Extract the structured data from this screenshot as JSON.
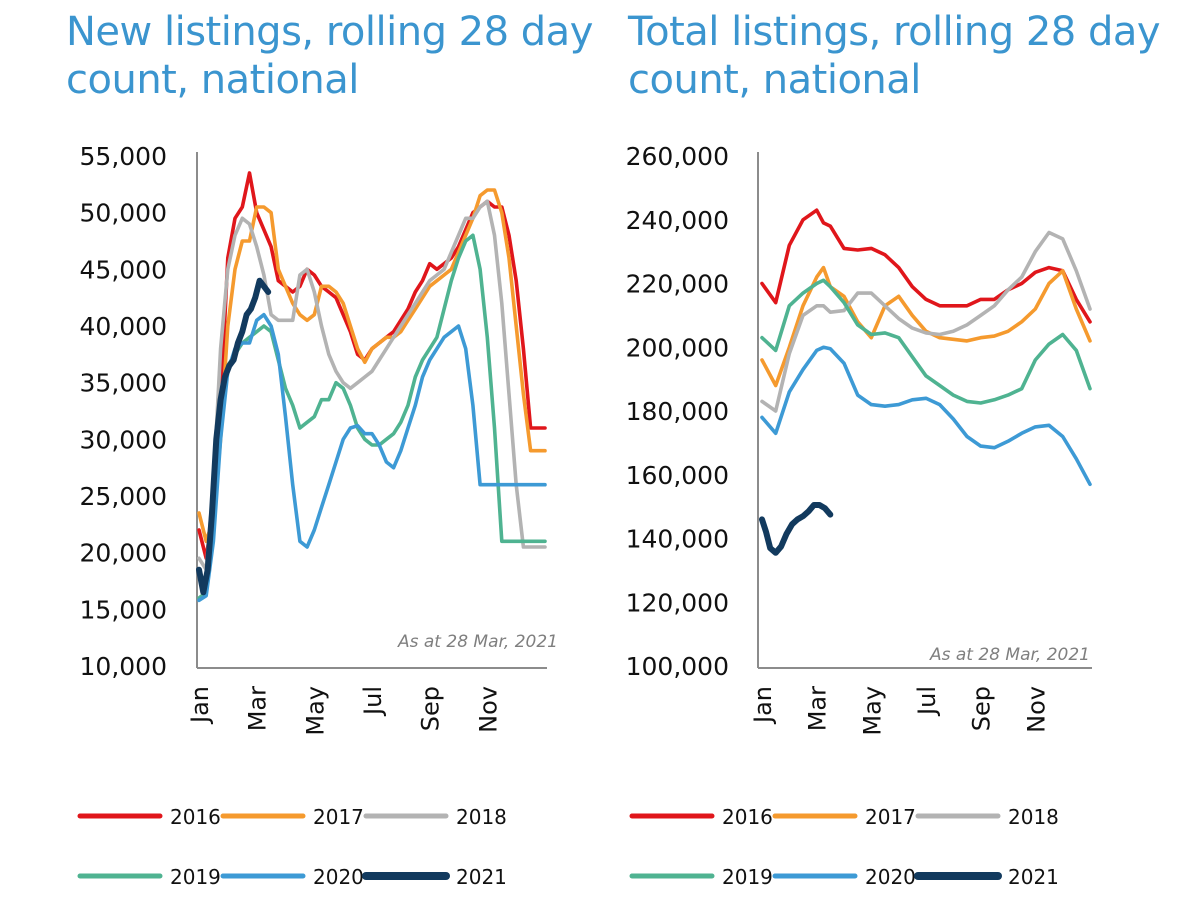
{
  "titles": {
    "left": "New listings, rolling 28 day count, national",
    "right": "Total listings, rolling 28 day count, national"
  },
  "colors": {
    "2016": "#e0161b",
    "2017": "#f59a2e",
    "2018": "#b3b3b3",
    "2019": "#4fb391",
    "2020": "#3d9ad5",
    "2021": "#123a5e"
  },
  "chart_data": [
    {
      "type": "line",
      "title": "New listings, rolling 28 day count, national",
      "xlabel": "",
      "ylabel": "",
      "x_unit": "month index (0 = start of Jan, 12 = end of Dec)",
      "x_ticks": [
        "Jan",
        "Mar",
        "May",
        "Jul",
        "Sep",
        "Nov"
      ],
      "x_tick_positions": [
        0,
        2,
        4,
        6,
        8,
        10
      ],
      "xlim": [
        0,
        12
      ],
      "y_ticks": [
        "10,000",
        "15,000",
        "20,000",
        "25,000",
        "30,000",
        "35,000",
        "40,000",
        "45,000",
        "50,000",
        "55,000"
      ],
      "ylim": [
        10000,
        55000
      ],
      "grid": false,
      "annotation": "As at 28 Mar, 2021",
      "legend": [
        "2016",
        "2017",
        "2018",
        "2019",
        "2020",
        "2021"
      ],
      "legend_position": "bottom",
      "series": [
        {
          "name": "2016",
          "x": [
            0,
            0.25,
            0.5,
            0.75,
            1,
            1.25,
            1.5,
            1.75,
            2,
            2.25,
            2.5,
            2.75,
            3,
            3.25,
            3.5,
            3.75,
            4,
            4.25,
            4.5,
            4.75,
            5,
            5.25,
            5.5,
            5.75,
            6,
            6.25,
            6.5,
            6.75,
            7,
            7.25,
            7.5,
            7.75,
            8,
            8.25,
            8.5,
            8.75,
            9,
            9.25,
            9.5,
            9.75,
            10,
            10.25,
            10.5,
            10.75,
            11,
            11.25,
            11.5,
            11.75,
            12
          ],
          "y": [
            22000,
            19500,
            24000,
            33000,
            46000,
            49500,
            50500,
            53500,
            50000,
            48500,
            47000,
            44000,
            43500,
            43000,
            43500,
            45000,
            44500,
            43500,
            43000,
            42500,
            41000,
            39500,
            37500,
            37000,
            38000,
            38500,
            39000,
            39500,
            40500,
            41500,
            43000,
            44000,
            45500,
            45000,
            45500,
            46000,
            47000,
            48500,
            50000,
            50500,
            51000,
            50500,
            50500,
            48000,
            44000,
            38000,
            31000,
            31000,
            31000
          ]
        },
        {
          "name": "2017",
          "x": [
            0,
            0.25,
            0.5,
            0.75,
            1,
            1.25,
            1.5,
            1.75,
            2,
            2.25,
            2.5,
            2.75,
            3,
            3.25,
            3.5,
            3.75,
            4,
            4.25,
            4.5,
            4.75,
            5,
            5.25,
            5.5,
            5.75,
            6,
            6.25,
            6.5,
            6.75,
            7,
            7.25,
            7.5,
            7.75,
            8,
            8.25,
            8.5,
            8.75,
            9,
            9.25,
            9.5,
            9.75,
            10,
            10.25,
            10.5,
            10.75,
            11,
            11.25,
            11.5,
            11.75,
            12
          ],
          "y": [
            23500,
            21000,
            23000,
            30000,
            40000,
            45000,
            47500,
            47500,
            50500,
            50500,
            50000,
            45000,
            43500,
            42000,
            41000,
            40500,
            41000,
            43500,
            43500,
            43000,
            42000,
            40000,
            38000,
            36800,
            38000,
            38500,
            39000,
            39000,
            39500,
            40500,
            41500,
            42500,
            43500,
            44000,
            44500,
            45000,
            46500,
            48000,
            49500,
            51500,
            52000,
            52000,
            50000,
            46000,
            40000,
            34000,
            29000,
            29000,
            29000
          ]
        },
        {
          "name": "2018",
          "x": [
            0,
            0.25,
            0.5,
            0.75,
            1,
            1.25,
            1.5,
            1.75,
            2,
            2.25,
            2.5,
            2.75,
            3,
            3.25,
            3.5,
            3.75,
            4,
            4.25,
            4.5,
            4.75,
            5,
            5.25,
            5.5,
            5.75,
            6,
            6.25,
            6.5,
            6.75,
            7,
            7.25,
            7.5,
            7.75,
            8,
            8.25,
            8.5,
            8.75,
            9,
            9.25,
            9.5,
            9.75,
            10,
            10.25,
            10.5,
            10.75,
            11,
            11.25,
            11.5,
            11.75,
            12
          ],
          "y": [
            19500,
            18500,
            26000,
            38000,
            45000,
            48000,
            49500,
            49000,
            47000,
            44500,
            41000,
            40500,
            40500,
            40500,
            44500,
            45000,
            43000,
            40000,
            37500,
            36000,
            35000,
            34500,
            35000,
            35500,
            36000,
            37000,
            38000,
            39000,
            40000,
            41000,
            42000,
            43000,
            44000,
            44500,
            45000,
            46500,
            48000,
            49500,
            49500,
            50500,
            51000,
            48000,
            42000,
            34000,
            26000,
            20500,
            20500,
            20500,
            20500
          ]
        },
        {
          "name": "2019",
          "x": [
            0,
            0.25,
            0.5,
            0.75,
            1,
            1.25,
            1.5,
            1.75,
            2,
            2.25,
            2.5,
            2.75,
            3,
            3.25,
            3.5,
            3.75,
            4,
            4.25,
            4.5,
            4.75,
            5,
            5.25,
            5.5,
            5.75,
            6,
            6.25,
            6.5,
            6.75,
            7,
            7.25,
            7.5,
            7.75,
            8,
            8.25,
            8.5,
            8.75,
            9,
            9.25,
            9.5,
            9.75,
            10,
            10.25,
            10.5,
            10.75,
            11,
            11.25,
            11.5,
            11.75,
            12
          ],
          "y": [
            16000,
            16500,
            22000,
            31000,
            36500,
            37500,
            38500,
            39000,
            39500,
            40000,
            39500,
            37000,
            34500,
            33000,
            31000,
            31500,
            32000,
            33500,
            33500,
            35000,
            34500,
            33000,
            31000,
            30000,
            29500,
            29500,
            30000,
            30500,
            31500,
            33000,
            35500,
            37000,
            38000,
            39000,
            41500,
            44000,
            46000,
            47500,
            48000,
            45000,
            39000,
            31000,
            21000,
            21000,
            21000,
            21000,
            21000,
            21000,
            21000
          ]
        },
        {
          "name": "2020",
          "x": [
            0,
            0.25,
            0.5,
            0.75,
            1,
            1.25,
            1.5,
            1.75,
            2,
            2.25,
            2.5,
            2.75,
            3,
            3.25,
            3.5,
            3.75,
            4,
            4.25,
            4.5,
            4.75,
            5,
            5.25,
            5.5,
            5.75,
            6,
            6.25,
            6.5,
            6.75,
            7,
            7.25,
            7.5,
            7.75,
            8,
            8.25,
            8.5,
            8.75,
            9,
            9.25,
            9.5,
            9.75,
            10,
            10.25,
            10.5,
            10.75,
            11,
            11.25,
            11.5,
            11.75,
            12
          ],
          "y": [
            15800,
            16200,
            21000,
            30000,
            36000,
            38000,
            38500,
            38500,
            40500,
            41000,
            40000,
            37500,
            32000,
            26000,
            21000,
            20500,
            22000,
            24000,
            26000,
            28000,
            30000,
            31000,
            31200,
            30500,
            30500,
            29500,
            28000,
            27500,
            29000,
            31000,
            33000,
            35500,
            37000,
            38000,
            39000,
            39500,
            40000,
            38000,
            33000,
            26000,
            26000,
            26000,
            26000,
            26000,
            26000,
            26000,
            26000,
            26000,
            26000
          ]
        },
        {
          "name": "2021",
          "x": [
            0,
            0.15,
            0.3,
            0.45,
            0.6,
            0.75,
            0.9,
            1.05,
            1.2,
            1.35,
            1.5,
            1.65,
            1.8,
            1.95,
            2.1,
            2.25,
            2.4
          ],
          "y": [
            18500,
            16500,
            18500,
            23500,
            30000,
            33500,
            35500,
            36500,
            37000,
            38500,
            39500,
            41000,
            41500,
            42500,
            44000,
            43500,
            43000
          ]
        }
      ]
    },
    {
      "type": "line",
      "title": "Total listings, rolling 28 day count, national",
      "xlabel": "",
      "ylabel": "",
      "x_unit": "month index (0 = start of Jan, 12 = end of Dec)",
      "x_ticks": [
        "Jan",
        "Mar",
        "May",
        "Jul",
        "Sep",
        "Nov"
      ],
      "x_tick_positions": [
        0,
        2,
        4,
        6,
        8,
        10
      ],
      "xlim": [
        0,
        12
      ],
      "y_ticks": [
        "100,000",
        "120,000",
        "140,000",
        "160,000",
        "180,000",
        "200,000",
        "220,000",
        "240,000",
        "260,000"
      ],
      "ylim": [
        100000,
        260000
      ],
      "grid": false,
      "annotation": "As at 28 Mar, 2021",
      "legend": [
        "2016",
        "2017",
        "2018",
        "2019",
        "2020",
        "2021"
      ],
      "legend_position": "bottom",
      "series": [
        {
          "name": "2016",
          "x": [
            0,
            0.5,
            1,
            1.5,
            2,
            2.25,
            2.5,
            3,
            3.5,
            4,
            4.5,
            5,
            5.5,
            6,
            6.5,
            7,
            7.5,
            8,
            8.5,
            9,
            9.5,
            10,
            10.5,
            11,
            11.5,
            12
          ],
          "y": [
            220000,
            214000,
            232000,
            240000,
            243000,
            239000,
            238000,
            231000,
            230500,
            231000,
            229000,
            225000,
            219000,
            215000,
            213000,
            213000,
            213000,
            215000,
            215000,
            218000,
            220000,
            223500,
            225000,
            224000,
            215000,
            208000
          ]
        },
        {
          "name": "2017",
          "x": [
            0,
            0.5,
            1,
            1.5,
            2,
            2.25,
            2.5,
            3,
            3.5,
            4,
            4.5,
            5,
            5.5,
            6,
            6.5,
            7,
            7.5,
            8,
            8.5,
            9,
            9.5,
            10,
            10.5,
            11,
            11.5,
            12
          ],
          "y": [
            196000,
            188000,
            200000,
            213000,
            222000,
            225000,
            219000,
            216000,
            208000,
            203000,
            213000,
            216000,
            210000,
            205000,
            203000,
            202500,
            202000,
            203000,
            203500,
            205000,
            208000,
            212000,
            220000,
            224000,
            212000,
            202000
          ]
        },
        {
          "name": "2018",
          "x": [
            0,
            0.5,
            1,
            1.5,
            2,
            2.25,
            2.5,
            3,
            3.5,
            4,
            4.5,
            5,
            5.5,
            6,
            6.5,
            7,
            7.5,
            8,
            8.5,
            9,
            9.5,
            10,
            10.5,
            11,
            11.5,
            12
          ],
          "y": [
            183000,
            180000,
            198000,
            210000,
            213000,
            213000,
            211000,
            211500,
            217000,
            217000,
            213000,
            209000,
            206000,
            204500,
            204000,
            205000,
            207000,
            210000,
            213000,
            218000,
            222000,
            230000,
            236000,
            234000,
            224000,
            212000
          ]
        },
        {
          "name": "2019",
          "x": [
            0,
            0.5,
            1,
            1.5,
            2,
            2.25,
            2.5,
            3,
            3.5,
            4,
            4.5,
            5,
            5.5,
            6,
            6.5,
            7,
            7.5,
            8,
            8.5,
            9,
            9.5,
            10,
            10.5,
            11,
            11.5,
            12
          ],
          "y": [
            203000,
            199000,
            213000,
            217000,
            220000,
            221000,
            219000,
            214000,
            207000,
            204000,
            204500,
            203000,
            197000,
            191000,
            188000,
            185000,
            183000,
            182500,
            183500,
            185000,
            187000,
            196000,
            201000,
            204000,
            199000,
            187000
          ]
        },
        {
          "name": "2020",
          "x": [
            0,
            0.5,
            1,
            1.5,
            2,
            2.25,
            2.5,
            3,
            3.5,
            4,
            4.5,
            5,
            5.5,
            6,
            6.5,
            7,
            7.5,
            8,
            8.5,
            9,
            9.5,
            10,
            10.5,
            11,
            11.5,
            12
          ],
          "y": [
            178000,
            173000,
            186000,
            193000,
            199000,
            200000,
            199500,
            195000,
            185000,
            182000,
            181500,
            182000,
            183500,
            184000,
            182000,
            177500,
            172000,
            169000,
            168500,
            170500,
            173000,
            175000,
            175500,
            172000,
            165000,
            157000
          ]
        },
        {
          "name": "2021",
          "x": [
            0,
            0.15,
            0.3,
            0.5,
            0.7,
            0.9,
            1.1,
            1.3,
            1.5,
            1.7,
            1.9,
            2.1,
            2.3,
            2.5
          ],
          "y": [
            146000,
            142000,
            137000,
            135500,
            137500,
            141500,
            144500,
            146000,
            147000,
            148500,
            150500,
            150500,
            149500,
            147500
          ]
        }
      ]
    }
  ]
}
